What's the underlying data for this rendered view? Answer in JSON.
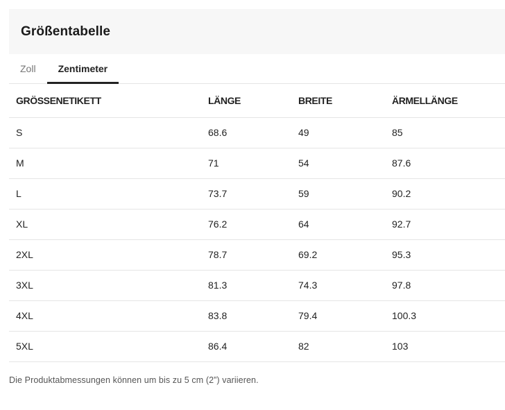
{
  "page": {
    "title": "Größentabelle",
    "footnote": "Die Produktabmessungen können um bis zu 5 cm (2”) variieren."
  },
  "tabs": [
    {
      "label": "Zoll",
      "active": false
    },
    {
      "label": "Zentimeter",
      "active": true
    }
  ],
  "table": {
    "columns": [
      "GRÖSSENETIKETT",
      "LÄNGE",
      "BREITE",
      "ÄRMELLÄNGE"
    ],
    "rows": [
      [
        "S",
        "68.6",
        "49",
        "85"
      ],
      [
        "M",
        "71",
        "54",
        "87.6"
      ],
      [
        "L",
        "73.7",
        "59",
        "90.2"
      ],
      [
        "XL",
        "76.2",
        "64",
        "92.7"
      ],
      [
        "2XL",
        "78.7",
        "69.2",
        "95.3"
      ],
      [
        "3XL",
        "81.3",
        "74.3",
        "97.8"
      ],
      [
        "4XL",
        "83.8",
        "79.4",
        "100.3"
      ],
      [
        "5XL",
        "86.4",
        "82",
        "103"
      ]
    ]
  },
  "colors": {
    "header_band_bg": "#f7f7f7",
    "active_tab": "#222222",
    "inactive_tab": "#767676",
    "divider": "#e5e5e5",
    "footnote_text": "#555555"
  }
}
